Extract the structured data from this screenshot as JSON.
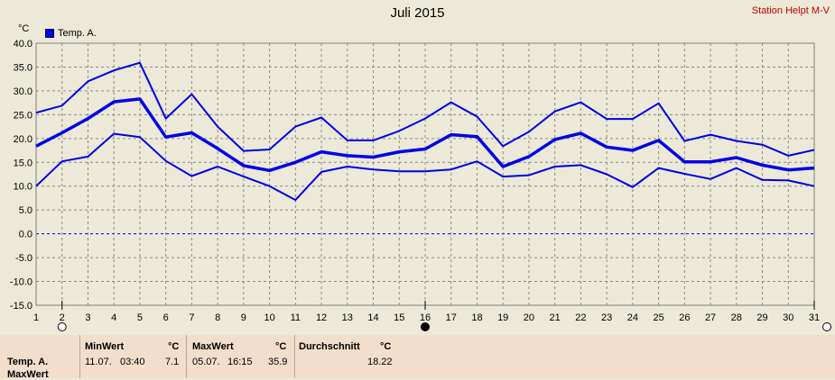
{
  "header": {
    "title": "Juli 2015",
    "station": "Station Helpt M-V",
    "unit": "°C"
  },
  "legend": {
    "label": "Temp. A.",
    "color": "#0000e6"
  },
  "chart_data": {
    "type": "line",
    "title": "Juli 2015",
    "ylabel": "°C",
    "ylim": [
      -15,
      40
    ],
    "yticks": [
      "40.0",
      "35.0",
      "30.0",
      "25.0",
      "20.0",
      "15.0",
      "10.0",
      "5.0",
      "0.0",
      "-5.0",
      "-10.0",
      "-15.0"
    ],
    "x": [
      1,
      2,
      3,
      4,
      5,
      6,
      7,
      8,
      9,
      10,
      11,
      12,
      13,
      14,
      15,
      16,
      17,
      18,
      19,
      20,
      21,
      22,
      23,
      24,
      25,
      26,
      27,
      28,
      29,
      30,
      31
    ],
    "grid": true,
    "zero_line": true,
    "series": [
      {
        "name": "max",
        "values": [
          25.4,
          26.9,
          32.0,
          34.3,
          35.9,
          24.2,
          29.3,
          22.5,
          17.4,
          17.7,
          22.5,
          24.4,
          19.6,
          19.6,
          21.6,
          24.2,
          27.6,
          24.6,
          18.4,
          21.4,
          25.7,
          27.6,
          24.1,
          24.1,
          27.4,
          19.5,
          20.8,
          19.5,
          18.7,
          16.4,
          17.6
        ]
      },
      {
        "name": "avg",
        "values": [
          18.4,
          21.2,
          24.2,
          27.7,
          28.3,
          20.3,
          21.2,
          17.9,
          14.3,
          13.3,
          15.0,
          17.2,
          16.4,
          16.1,
          17.2,
          17.8,
          20.8,
          20.4,
          14.1,
          16.2,
          19.8,
          21.1,
          18.2,
          17.5,
          19.6,
          15.1,
          15.1,
          16.0,
          14.4,
          13.4,
          13.8
        ]
      },
      {
        "name": "min",
        "values": [
          10.0,
          15.2,
          16.2,
          21.0,
          20.3,
          15.3,
          12.1,
          14.1,
          12.0,
          10.0,
          7.1,
          13.0,
          14.1,
          13.5,
          13.1,
          13.1,
          13.5,
          15.2,
          12.0,
          12.3,
          14.1,
          14.4,
          12.5,
          9.8,
          13.8,
          12.6,
          11.5,
          13.8,
          11.3,
          11.2,
          10.0
        ]
      }
    ]
  },
  "stats": {
    "row_label": "Temp. A.",
    "row_label_2": "MaxWert",
    "min_header": "MinWert",
    "min_unit": "°C",
    "min_date": "11.07.",
    "min_time": "03:40",
    "min_value": "7.1",
    "max_header": "MaxWert",
    "max_unit": "°C",
    "max_date": "05.07.",
    "max_time": "16:15",
    "max_value": "35.9",
    "avg_header": "Durchschnitt",
    "avg_unit": "°C",
    "avg_value": "18.22"
  }
}
